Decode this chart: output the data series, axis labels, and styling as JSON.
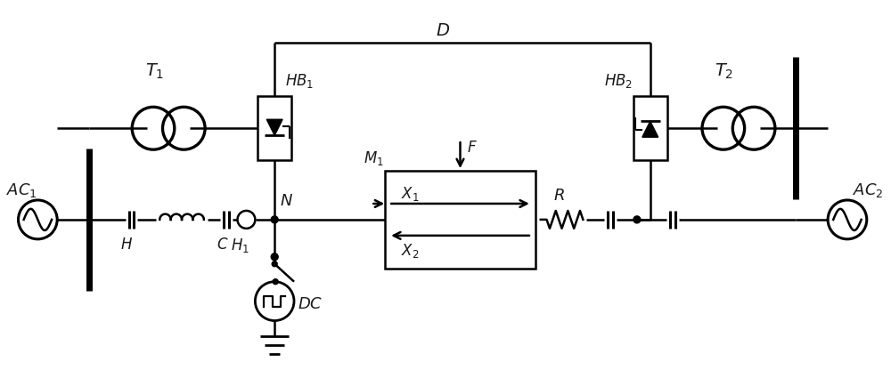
{
  "bg_color": "#ffffff",
  "line_color": "#000000",
  "text_color": "#1a1a1a",
  "figsize": [
    10.0,
    4.35
  ],
  "dpi": 100
}
